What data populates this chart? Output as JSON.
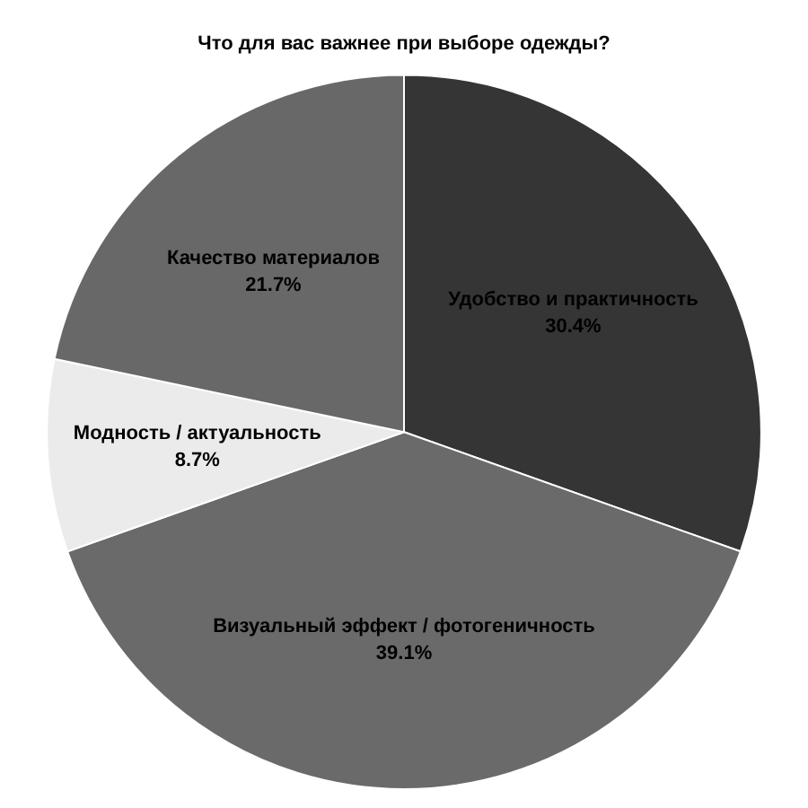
{
  "chart_data": {
    "type": "pie",
    "title": "Что для вас важнее при выборе одежды?",
    "categories": [
      "Удобство и практичность",
      "Визуальный эффект / фотогеничность",
      "Модность / актуальность",
      "Качество материалов"
    ],
    "values": [
      30.4,
      39.1,
      8.7,
      21.7
    ],
    "value_labels": [
      "30.4%",
      "39.1%",
      "8.7%",
      "21.7%"
    ],
    "colors": [
      "#353535",
      "#6a6a6a",
      "#ebebeb",
      "#686868"
    ],
    "legend": false
  }
}
